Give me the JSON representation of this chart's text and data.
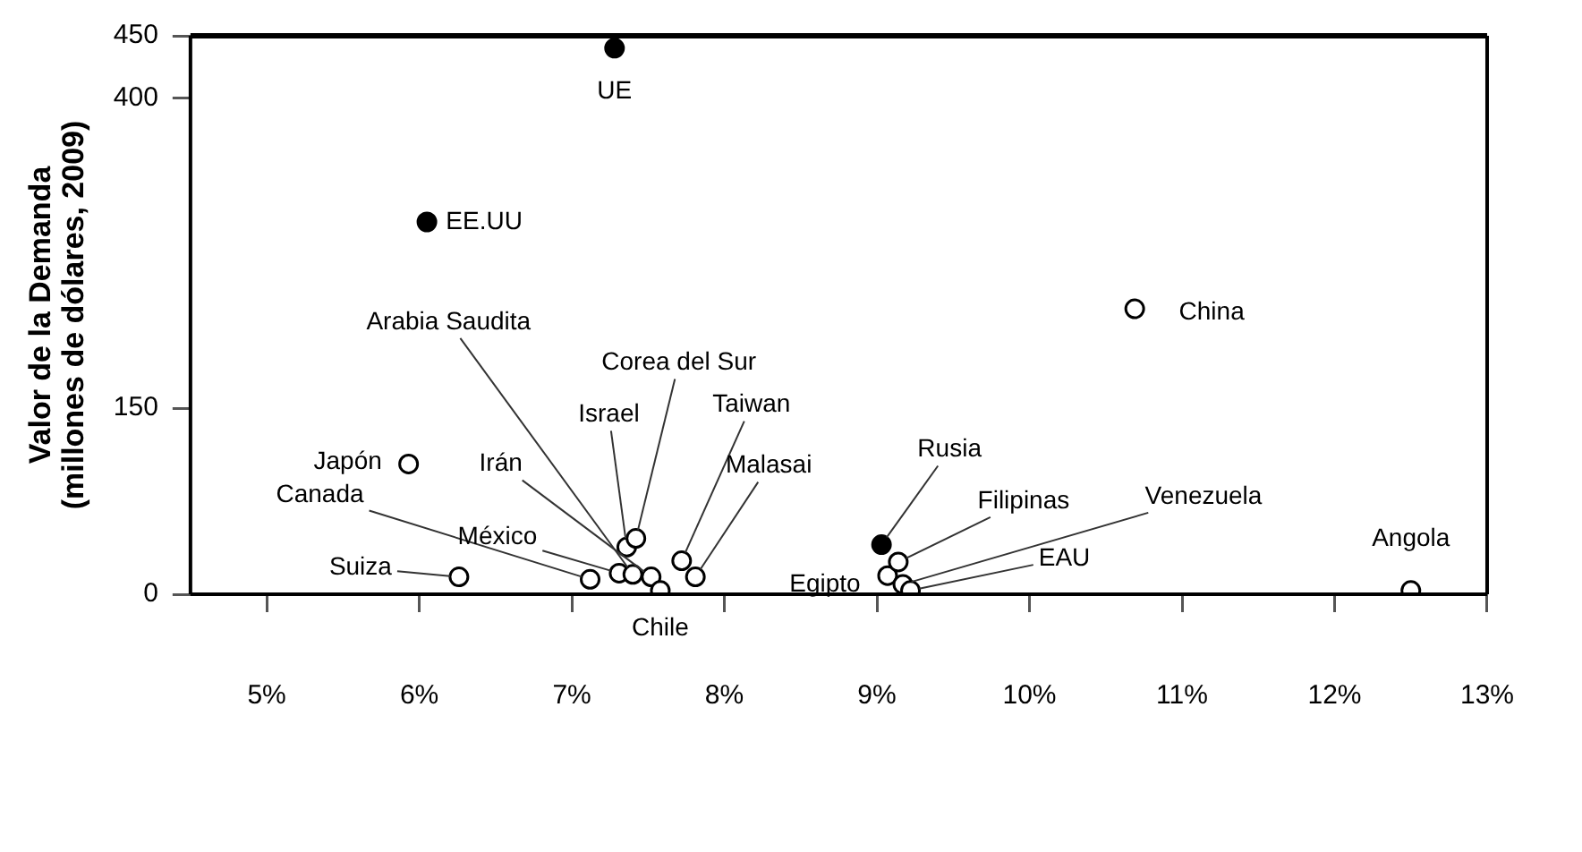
{
  "chart_data": {
    "type": "scatter",
    "ylabel": "Valor de la Demanda\n(millones de dólares, 2009)",
    "xlim": [
      4.5,
      13
    ],
    "xticks": [
      {
        "value": 5,
        "label": "5%"
      },
      {
        "value": 6,
        "label": "6%"
      },
      {
        "value": 7,
        "label": "7%"
      },
      {
        "value": 8,
        "label": "8%"
      },
      {
        "value": 9,
        "label": "9%"
      },
      {
        "value": 10,
        "label": "10%"
      },
      {
        "value": 11,
        "label": "11%"
      },
      {
        "value": 12,
        "label": "12%"
      },
      {
        "value": 13,
        "label": "13%"
      }
    ],
    "ylim": [
      0,
      450
    ],
    "yticks": [
      0,
      150,
      400,
      450
    ],
    "grid": false,
    "legend": false,
    "marker": "circle",
    "series": [
      {
        "color": "#000000",
        "x": [
          7.28,
          6.05,
          9.03
        ],
        "values": [
          440,
          300,
          40
        ]
      },
      {
        "color": "#ffffff",
        "x": [
          10.69,
          5.93,
          6.26,
          7.12,
          7.31,
          7.52,
          7.4,
          7.36,
          7.42,
          7.72,
          7.81,
          7.58,
          9.07,
          9.14,
          9.17,
          9.22,
          12.5
        ],
        "values": [
          230,
          105,
          14,
          12,
          17,
          14,
          16,
          38,
          45,
          27,
          14,
          3,
          15,
          26,
          8,
          3,
          3
        ]
      }
    ],
    "annotations": [
      {
        "text": "UE",
        "x": 7.28,
        "y": 440
      },
      {
        "text": "EE.UU",
        "x": 6.05,
        "y": 300
      },
      {
        "text": "Rusia",
        "x": 9.03,
        "y": 40
      },
      {
        "text": "China",
        "x": 10.69,
        "y": 230
      },
      {
        "text": "Japón",
        "x": 5.93,
        "y": 105
      },
      {
        "text": "Suiza",
        "x": 6.26,
        "y": 14
      },
      {
        "text": "Canada",
        "x": 7.12,
        "y": 12
      },
      {
        "text": "México",
        "x": 7.31,
        "y": 17
      },
      {
        "text": "Irán",
        "x": 7.52,
        "y": 14
      },
      {
        "text": "Arabia Saudita",
        "x": 7.4,
        "y": 16
      },
      {
        "text": "Israel",
        "x": 7.36,
        "y": 38
      },
      {
        "text": "Corea del Sur",
        "x": 7.42,
        "y": 45
      },
      {
        "text": "Taiwan",
        "x": 7.72,
        "y": 27
      },
      {
        "text": "Malasai",
        "x": 7.81,
        "y": 14
      },
      {
        "text": "Chile",
        "x": 7.58,
        "y": 3
      },
      {
        "text": "Egipto",
        "x": 9.07,
        "y": 15
      },
      {
        "text": "Filipinas",
        "x": 9.14,
        "y": 26
      },
      {
        "text": "Venezuela",
        "x": 9.17,
        "y": 8
      },
      {
        "text": "EAU",
        "x": 9.22,
        "y": 3
      },
      {
        "text": "Angola",
        "x": 12.5,
        "y": 3
      }
    ]
  }
}
